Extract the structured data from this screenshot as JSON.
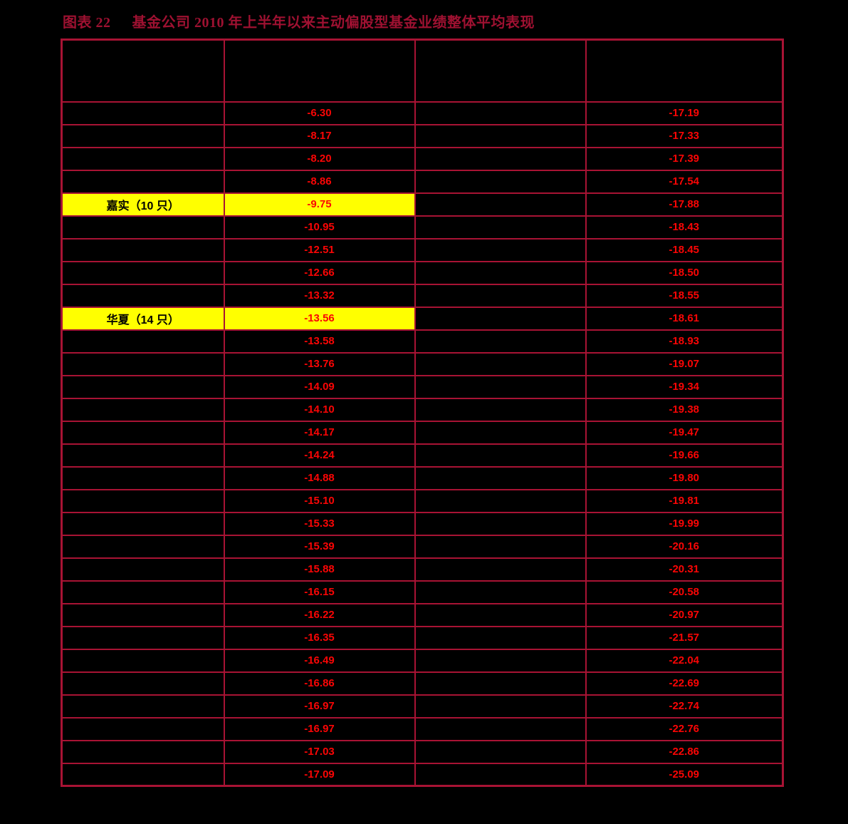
{
  "title": {
    "label": "图表 22",
    "caption": "基金公司 2010 年上半年以来主动偏股型基金业绩整体平均表现"
  },
  "colors": {
    "background": "#000000",
    "grid": "#A81334",
    "title_text": "#9E1131",
    "value_text": "#FA0505",
    "highlight": "#FFFF00",
    "highlight_text": "#000000"
  },
  "table": {
    "headers": [
      "",
      "",
      "",
      ""
    ],
    "rows": [
      {
        "cells": [
          "",
          "-6.30",
          "",
          "-17.19"
        ],
        "highlight": false
      },
      {
        "cells": [
          "",
          "-8.17",
          "",
          "-17.33"
        ],
        "highlight": false
      },
      {
        "cells": [
          "",
          "-8.20",
          "",
          "-17.39"
        ],
        "highlight": false
      },
      {
        "cells": [
          "",
          "-8.86",
          "",
          "-17.54"
        ],
        "highlight": false
      },
      {
        "cells": [
          "嘉实（10 只）",
          "-9.75",
          "",
          "-17.88"
        ],
        "highlight": true
      },
      {
        "cells": [
          "",
          "-10.95",
          "",
          "-18.43"
        ],
        "highlight": false
      },
      {
        "cells": [
          "",
          "-12.51",
          "",
          "-18.45"
        ],
        "highlight": false
      },
      {
        "cells": [
          "",
          "-12.66",
          "",
          "-18.50"
        ],
        "highlight": false
      },
      {
        "cells": [
          "",
          "-13.32",
          "",
          "-18.55"
        ],
        "highlight": false
      },
      {
        "cells": [
          "华夏（14 只）",
          "-13.56",
          "",
          "-18.61"
        ],
        "highlight": true
      },
      {
        "cells": [
          "",
          "-13.58",
          "",
          "-18.93"
        ],
        "highlight": false
      },
      {
        "cells": [
          "",
          "-13.76",
          "",
          "-19.07"
        ],
        "highlight": false
      },
      {
        "cells": [
          "",
          "-14.09",
          "",
          "-19.34"
        ],
        "highlight": false
      },
      {
        "cells": [
          "",
          "-14.10",
          "",
          "-19.38"
        ],
        "highlight": false
      },
      {
        "cells": [
          "",
          "-14.17",
          "",
          "-19.47"
        ],
        "highlight": false
      },
      {
        "cells": [
          "",
          "-14.24",
          "",
          "-19.66"
        ],
        "highlight": false
      },
      {
        "cells": [
          "",
          "-14.88",
          "",
          "-19.80"
        ],
        "highlight": false
      },
      {
        "cells": [
          "",
          "-15.10",
          "",
          "-19.81"
        ],
        "highlight": false
      },
      {
        "cells": [
          "",
          "-15.33",
          "",
          "-19.99"
        ],
        "highlight": false
      },
      {
        "cells": [
          "",
          "-15.39",
          "",
          "-20.16"
        ],
        "highlight": false
      },
      {
        "cells": [
          "",
          "-15.88",
          "",
          "-20.31"
        ],
        "highlight": false
      },
      {
        "cells": [
          "",
          "-16.15",
          "",
          "-20.58"
        ],
        "highlight": false
      },
      {
        "cells": [
          "",
          "-16.22",
          "",
          "-20.97"
        ],
        "highlight": false
      },
      {
        "cells": [
          "",
          "-16.35",
          "",
          "-21.57"
        ],
        "highlight": false
      },
      {
        "cells": [
          "",
          "-16.49",
          "",
          "-22.04"
        ],
        "highlight": false
      },
      {
        "cells": [
          "",
          "-16.86",
          "",
          "-22.69"
        ],
        "highlight": false
      },
      {
        "cells": [
          "",
          "-16.97",
          "",
          "-22.74"
        ],
        "highlight": false
      },
      {
        "cells": [
          "",
          "-16.97",
          "",
          "-22.76"
        ],
        "highlight": false
      },
      {
        "cells": [
          "",
          "-17.03",
          "",
          "-22.86"
        ],
        "highlight": false
      },
      {
        "cells": [
          "",
          "-17.09",
          "",
          "-25.09"
        ],
        "highlight": false
      }
    ]
  }
}
